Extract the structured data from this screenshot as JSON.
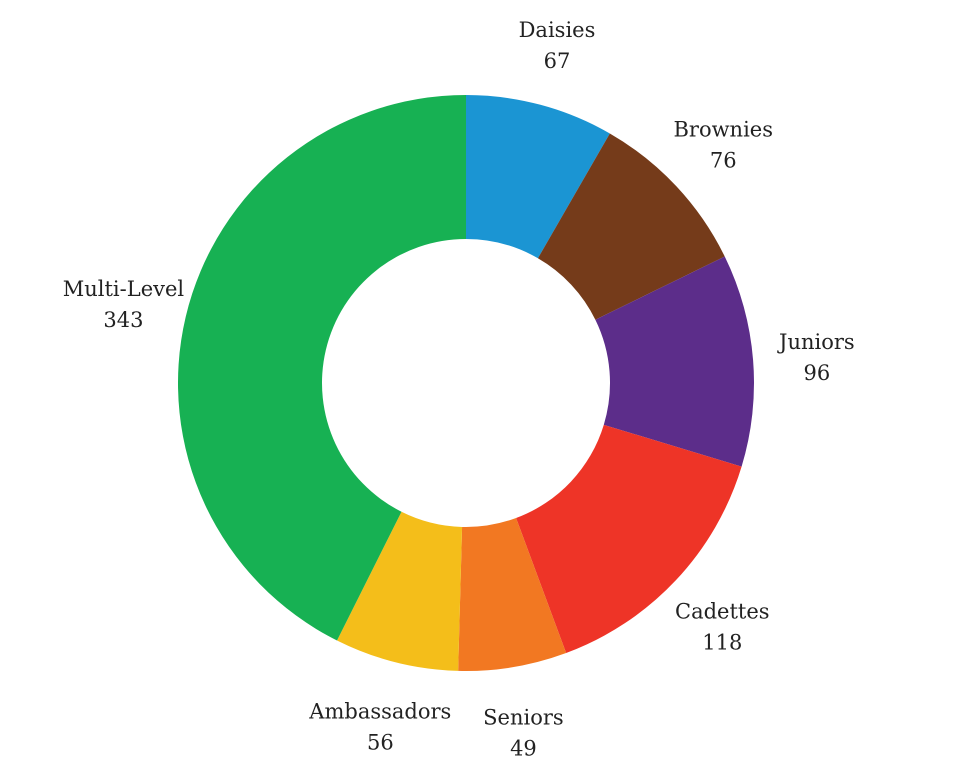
{
  "chart_data": {
    "type": "pie",
    "donut": true,
    "title": "",
    "series": [
      {
        "categories": [
          "Daisies",
          "Brownies",
          "Juniors",
          "Cadettes",
          "Seniors",
          "Ambassadors",
          "Multi-Level"
        ],
        "values": [
          67,
          76,
          96,
          118,
          49,
          56,
          343
        ],
        "colors": [
          "#1B95D3",
          "#753B1A",
          "#5C2D8A",
          "#EE3427",
          "#F27822",
          "#F4BE1A",
          "#17B153"
        ],
        "value_labels": [
          "67",
          "76",
          "96",
          "118",
          "49",
          "56",
          "343"
        ]
      }
    ],
    "legend": "none",
    "labels": "outside, category and value"
  }
}
